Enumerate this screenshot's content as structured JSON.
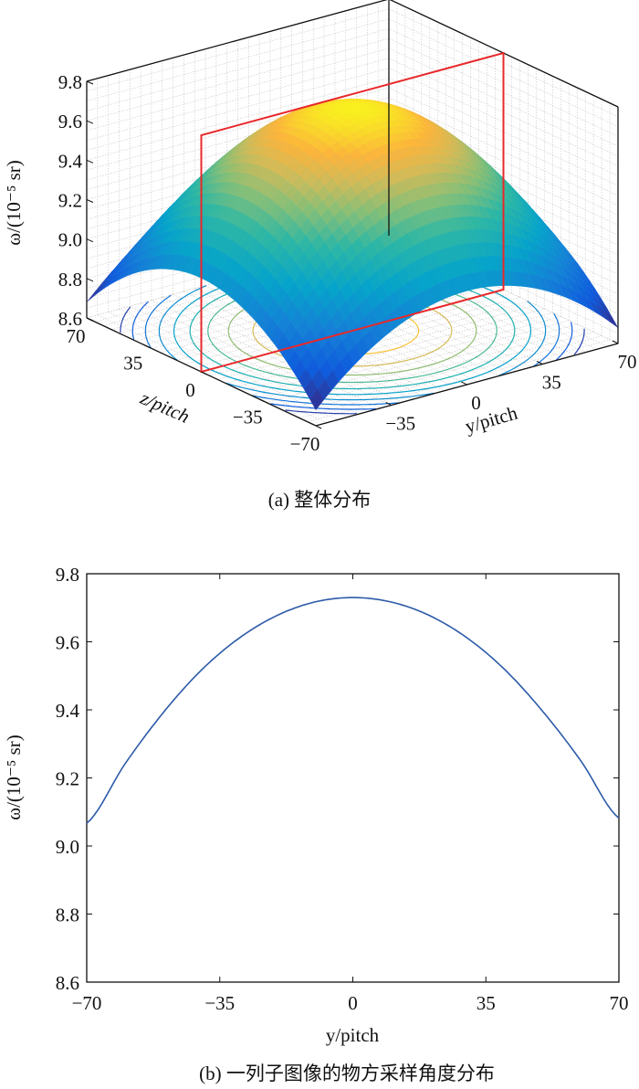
{
  "chart_data": [
    {
      "type": "surface",
      "title": "(a) 整体分布",
      "xlabel": "y/pitch",
      "ylabel": "z/pitch",
      "zlabel": "ω/(10⁻⁵ sr)",
      "y_ticks": [
        "−35",
        "0",
        "35",
        "70"
      ],
      "z_ticks": [
        "70",
        "35",
        "0",
        "−35",
        "−70"
      ],
      "w_ticks": [
        "9.8",
        "9.6",
        "9.4",
        "9.2",
        "9.0",
        "8.8",
        "8.6"
      ],
      "y_range": [
        -70,
        70
      ],
      "z_range": [
        -70,
        70
      ],
      "w_range": [
        8.6,
        9.8
      ],
      "peak_value": 9.73,
      "edge_value": 9.075,
      "corner_value": 8.68,
      "floor_contours": true,
      "highlight_plane": {
        "z": 0,
        "color": "#e8282b"
      },
      "grid": true,
      "colormap": "parula"
    },
    {
      "type": "line",
      "title": "(b) 一列子图像的物方采样角度分布",
      "xlabel": "y/pitch",
      "ylabel": "ω/(10⁻⁵ sr)",
      "x_ticks": [
        "−70",
        "−35",
        "0",
        "35",
        "70"
      ],
      "y_ticks": [
        "9.8",
        "9.6",
        "9.4",
        "9.2",
        "9.0",
        "8.8",
        "8.6"
      ],
      "xlim": [
        -70,
        70
      ],
      "ylim": [
        8.6,
        9.8
      ],
      "grid": false,
      "series": [
        {
          "name": "ω",
          "color": "#2c5aa8",
          "x": [
            -70,
            -60,
            -50,
            -40,
            -30,
            -20,
            -10,
            0,
            10,
            20,
            30,
            40,
            50,
            60,
            70
          ],
          "y": [
            9.067,
            9.24,
            9.39,
            9.515,
            9.61,
            9.677,
            9.717,
            9.73,
            9.717,
            9.678,
            9.612,
            9.518,
            9.395,
            9.25,
            9.082
          ]
        }
      ]
    }
  ]
}
